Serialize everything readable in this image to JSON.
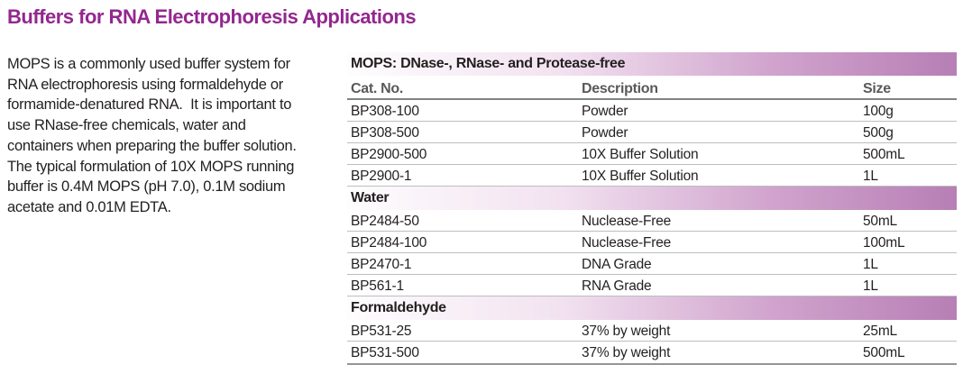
{
  "page_title": "Buffers for RNA Electrophoresis Applications",
  "intro_paragraph": "MOPS is a commonly used buffer system for\nRNA electrophoresis using formaldehyde or\nformamide-denatured RNA.  It is important to\nuse RNase-free chemicals, water and\ncontainers when preparing the buffer solution.\nThe typical formulation of 10X MOPS running\nbuffer is 0.4M MOPS (pH 7.0), 0.1M sodium\nacetate and 0.01M EDTA.",
  "table": {
    "columns": [
      "Cat. No.",
      "Description",
      "Size"
    ],
    "sections": [
      {
        "title": "MOPS: DNase-, RNase- and Protease-free",
        "rows": [
          {
            "cat_no": "BP308-100",
            "description": "Powder",
            "size": "100g"
          },
          {
            "cat_no": "BP308-500",
            "description": "Powder",
            "size": "500g"
          },
          {
            "cat_no": "BP2900-500",
            "description": "10X Buffer Solution",
            "size": "500mL"
          },
          {
            "cat_no": "BP2900-1",
            "description": "10X Buffer Solution",
            "size": "1L"
          }
        ]
      },
      {
        "title": "Water",
        "rows": [
          {
            "cat_no": "BP2484-50",
            "description": "Nuclease-Free",
            "size": "50mL"
          },
          {
            "cat_no": "BP2484-100",
            "description": "Nuclease-Free",
            "size": "100mL"
          },
          {
            "cat_no": "BP2470-1",
            "description": "DNA Grade",
            "size": "1L"
          },
          {
            "cat_no": "BP561-1",
            "description": "RNA Grade",
            "size": "1L"
          }
        ]
      },
      {
        "title": "Formaldehyde",
        "rows": [
          {
            "cat_no": "BP531-25",
            "description": "37% by weight",
            "size": "25mL"
          },
          {
            "cat_no": "BP531-500",
            "description": "37% by weight",
            "size": "500mL"
          }
        ]
      }
    ]
  },
  "colors": {
    "title": "#93278f",
    "body_text": "#231f20",
    "header_text": "#58595b",
    "header_line": "#808285",
    "row_line": "#bcbec0",
    "bottom_line": "#939598",
    "band_gradient_start": "#fefdfe",
    "band_gradient_end": "#b77fb5"
  }
}
